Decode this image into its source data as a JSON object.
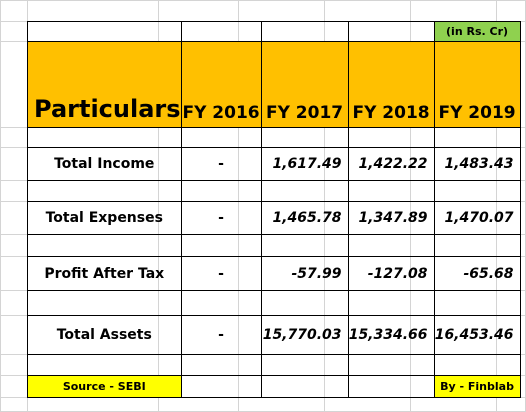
{
  "unit_note": "(in Rs. Cr)",
  "header": {
    "particulars": "Particulars",
    "years": [
      "FY 2016",
      "FY 2017",
      "FY 2018",
      "FY 2019"
    ]
  },
  "rows": [
    {
      "label": "Total Income",
      "values": [
        "-",
        "1,617.49",
        "1,422.22",
        "1,483.43"
      ]
    },
    {
      "label": "Total Expenses",
      "values": [
        "-",
        "1,465.78",
        "1,347.89",
        "1,470.07"
      ]
    },
    {
      "label": "Profit After Tax",
      "values": [
        "-",
        "-57.99",
        "-127.08",
        "-65.68"
      ]
    },
    {
      "label": "Total Assets",
      "values": [
        "-",
        "15,770.03",
        "15,334.66",
        "16,453.46"
      ]
    }
  ],
  "footer": {
    "source": "Source - SEBI",
    "by": "By - Finblab"
  },
  "colors": {
    "header_bg": "#ffc000",
    "unit_bg": "#8fd14f",
    "footer_bg": "#ffff00"
  }
}
